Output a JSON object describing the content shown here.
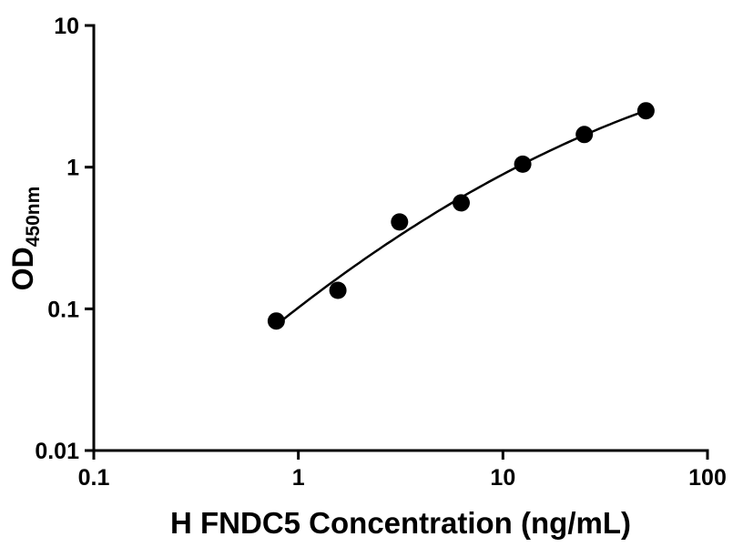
{
  "chart_data": {
    "type": "scatter",
    "title": "",
    "xlabel": "H FNDC5 Concentration (ng/mL)",
    "ylabel": "OD450nm",
    "ylabel_main": "OD",
    "ylabel_sub": "450nm",
    "x_scale": "log",
    "y_scale": "log",
    "xlim": [
      0.1,
      100
    ],
    "ylim": [
      0.01,
      10
    ],
    "x_ticks": [
      0.1,
      1,
      10,
      100
    ],
    "x_tick_labels": [
      "0.1",
      "1",
      "10",
      "100"
    ],
    "y_ticks": [
      0.01,
      0.1,
      1,
      10
    ],
    "y_tick_labels": [
      "0.01",
      "0.1",
      "1",
      "10"
    ],
    "x": [
      0.78,
      1.56,
      3.125,
      6.25,
      12.5,
      25,
      50
    ],
    "y": [
      0.082,
      0.135,
      0.41,
      0.56,
      1.05,
      1.7,
      2.5
    ],
    "curve_fit": "smooth quadratic fit in log-log space through standard points",
    "grid": false,
    "legend": false,
    "marker_shape": "filled-circle",
    "marker_color": "#000000",
    "line_color": "#000000",
    "axis_color": "#000000",
    "background_color": "#ffffff"
  }
}
